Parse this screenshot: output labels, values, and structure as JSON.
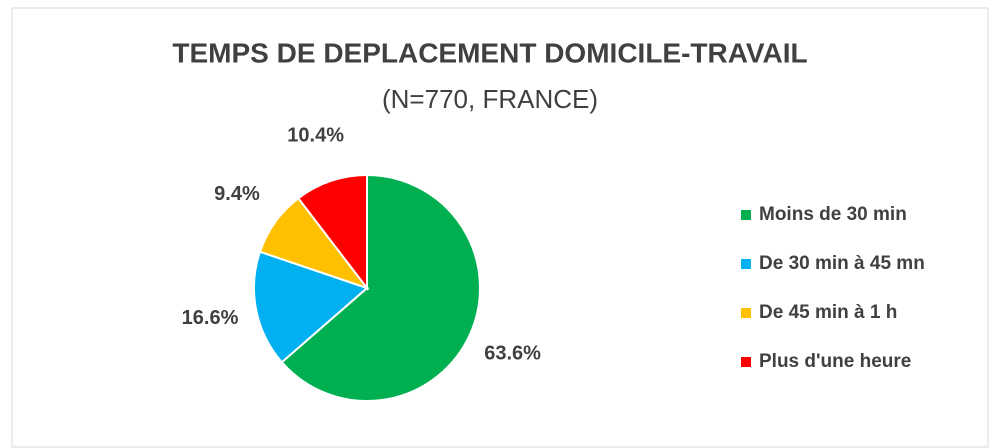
{
  "chart_data": {
    "type": "pie",
    "title": "TEMPS DE DEPLACEMENT DOMICILE-TRAVAIL",
    "subtitle": "(N=770, FRANCE)",
    "categories": [
      "Moins de 30 min",
      "De 30 min à 45 mn",
      "De 45 min à 1 h",
      "Plus d'une heure"
    ],
    "values": [
      63.6,
      16.6,
      9.4,
      10.4
    ],
    "value_labels": [
      "63.6%",
      "16.6%",
      "9.4%",
      "10.4%"
    ],
    "colors": [
      "#00b050",
      "#00b0f0",
      "#ffc000",
      "#ff0000"
    ],
    "legend": "right"
  }
}
